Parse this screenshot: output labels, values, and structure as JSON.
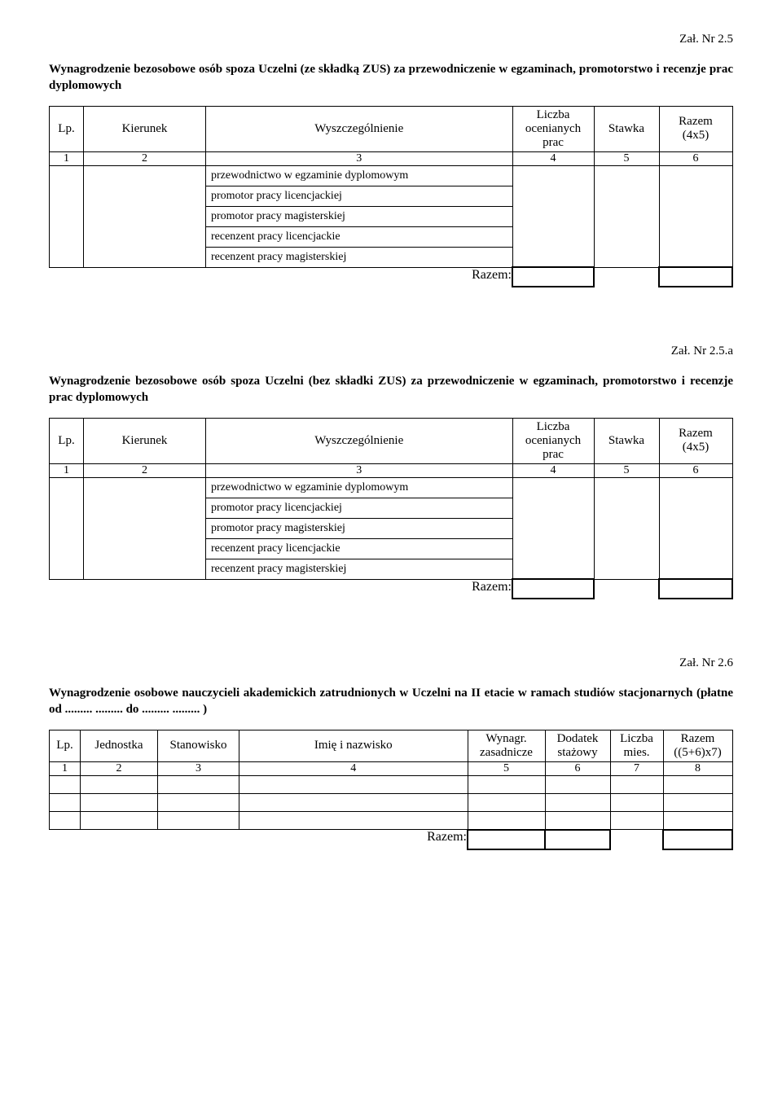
{
  "section1": {
    "annex": "Zał. Nr 2.5",
    "heading": "Wynagrodzenie bezosobowe osób spoza Uczelni (ze składką ZUS) za przewodniczenie w egzaminach, promotorstwo i recenzje prac dyplomowych",
    "cols": {
      "lp": "Lp.",
      "kierunek": "Kierunek",
      "wyszcz": "Wyszczególnienie",
      "liczba_l1": "Liczba",
      "liczba_l2": "ocenianych",
      "liczba_l3": "prac",
      "stawka": "Stawka",
      "razem_l1": "Razem",
      "razem_l2": "(4x5)"
    },
    "nums": {
      "c1": "1",
      "c2": "2",
      "c3": "3",
      "c4": "4",
      "c5": "5",
      "c6": "6"
    },
    "items": {
      "r0": "przewodnictwo w egzaminie dyplomowym",
      "r1": "promotor pracy licencjackiej",
      "r2": "promotor pracy magisterskiej",
      "r3": "recenzent pracy licencjackie",
      "r4": "recenzent pracy magisterskiej"
    },
    "razem_label": "Razem:"
  },
  "section2": {
    "annex": "Zał. Nr 2.5.a",
    "heading": "Wynagrodzenie bezosobowe osób spoza Uczelni (bez składki ZUS) za przewodniczenie w egzaminach, promotorstwo i recenzje prac dyplomowych",
    "cols": {
      "lp": "Lp.",
      "kierunek": "Kierunek",
      "wyszcz": "Wyszczególnienie",
      "liczba_l1": "Liczba",
      "liczba_l2": "ocenianych",
      "liczba_l3": "prac",
      "stawka": "Stawka",
      "razem_l1": "Razem",
      "razem_l2": "(4x5)"
    },
    "nums": {
      "c1": "1",
      "c2": "2",
      "c3": "3",
      "c4": "4",
      "c5": "5",
      "c6": "6"
    },
    "items": {
      "r0": "przewodnictwo w egzaminie dyplomowym",
      "r1": "promotor pracy licencjackiej",
      "r2": "promotor pracy magisterskiej",
      "r3": "recenzent pracy licencjackie",
      "r4": "recenzent pracy magisterskiej"
    },
    "razem_label": "Razem:"
  },
  "section3": {
    "annex": "Zał. Nr 2.6",
    "heading": "Wynagrodzenie osobowe nauczycieli akademickich zatrudnionych w Uczelni na II etacie w ramach studiów stacjonarnych (płatne od ......... ......... do ......... ......... )",
    "cols": {
      "lp": "Lp.",
      "jednostka": "Jednostka",
      "stanowisko": "Stanowisko",
      "imie": "Imię i nazwisko",
      "wynagr_l1": "Wynagr.",
      "wynagr_l2": "zasadnicze",
      "dodatek_l1": "Dodatek",
      "dodatek_l2": "stażowy",
      "liczba_l1": "Liczba",
      "liczba_l2": "mies.",
      "razem_l1": "Razem",
      "razem_l2": "((5+6)x7)"
    },
    "nums": {
      "c1": "1",
      "c2": "2",
      "c3": "3",
      "c4": "4",
      "c5": "5",
      "c6": "6",
      "c7": "7",
      "c8": "8"
    },
    "razem_label": "Razem:"
  }
}
